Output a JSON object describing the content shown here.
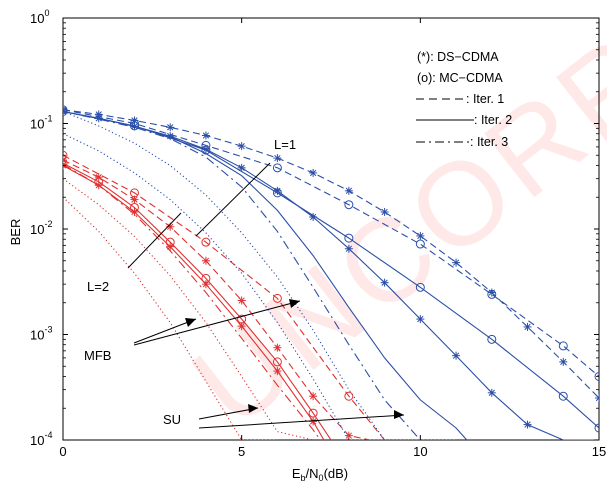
{
  "chart_data": {
    "type": "line",
    "xlabel": "E_b/N_0(dB)",
    "ylabel": "BER",
    "xlim": [
      0,
      15
    ],
    "ylim_log10": [
      -4,
      0
    ],
    "y_scale": "log",
    "x_ticks": [
      {
        "value": 0,
        "label": "0"
      },
      {
        "value": 5,
        "label": "5"
      },
      {
        "value": 10,
        "label": "10"
      },
      {
        "value": 15,
        "label": "15"
      }
    ],
    "y_ticks": [
      {
        "exp": 0,
        "base": "10",
        "sup": "0"
      },
      {
        "exp": -1,
        "base": "10",
        "sup": "-1"
      },
      {
        "exp": -2,
        "base": "10",
        "sup": "-2"
      },
      {
        "exp": -3,
        "base": "10",
        "sup": "-3"
      },
      {
        "exp": -4,
        "base": "10",
        "sup": "-4"
      }
    ],
    "grid": false,
    "watermark": "UNCORR",
    "legend": {
      "placement": "top-right",
      "entries": [
        "(*): DS−CDMA",
        "(o): MC−CDMA",
        ": Iter. 1",
        ": Iter. 2",
        ": Iter. 3"
      ]
    },
    "annotations": {
      "L1": "L=1",
      "L2": "L=2",
      "MFB": "MFB",
      "SU": "SU"
    },
    "colors": {
      "L1": "#2b4fa8",
      "L2": "#e03030"
    },
    "series": [
      {
        "group": "L1",
        "dash": "dashed",
        "marker": "o",
        "x": [
          0,
          2,
          4,
          6,
          8,
          10,
          12,
          14,
          15
        ],
        "y": [
          0.135,
          0.1,
          0.062,
          0.038,
          0.017,
          0.0072,
          0.0024,
          0.00078,
          0.0004
        ]
      },
      {
        "group": "L1",
        "dash": "dashed",
        "marker": "*",
        "x": [
          0,
          1,
          2,
          3,
          4,
          5,
          6,
          7,
          8,
          9,
          10,
          11,
          12,
          13,
          14,
          15
        ],
        "y": [
          0.135,
          0.122,
          0.107,
          0.092,
          0.077,
          0.061,
          0.047,
          0.034,
          0.023,
          0.0145,
          0.0086,
          0.0048,
          0.0025,
          0.00118,
          0.00055,
          0.00025
        ]
      },
      {
        "group": "L1",
        "dash": "solid",
        "marker": "o",
        "x": [
          0,
          2,
          4,
          6,
          8,
          10,
          12,
          14,
          15
        ],
        "y": [
          0.13,
          0.095,
          0.056,
          0.022,
          0.0082,
          0.0028,
          0.0009,
          0.00026,
          0.00013
        ]
      },
      {
        "group": "L1",
        "dash": "solid",
        "marker": "*",
        "x": [
          0,
          1,
          2,
          3,
          4,
          5,
          6,
          7,
          8,
          9,
          10,
          11,
          12,
          13,
          14,
          15
        ],
        "y": [
          0.13,
          0.112,
          0.094,
          0.076,
          0.057,
          0.038,
          0.023,
          0.013,
          0.0065,
          0.0031,
          0.0014,
          0.00063,
          0.00028,
          0.00014,
          0.0001,
          0.0001
        ]
      },
      {
        "group": "L1",
        "dash": "solid",
        "marker": "none",
        "x": [
          0,
          1,
          2,
          3,
          4,
          5,
          6,
          7,
          8,
          9,
          10,
          11,
          11.3
        ],
        "y": [
          0.13,
          0.112,
          0.094,
          0.075,
          0.052,
          0.032,
          0.015,
          0.0056,
          0.0018,
          0.0006,
          0.00024,
          0.00013,
          0.0001
        ]
      },
      {
        "group": "L1",
        "dash": "dashdot",
        "marker": "none",
        "x": [
          0,
          1,
          2,
          3,
          4,
          5,
          6,
          7,
          8,
          9,
          10
        ],
        "y": [
          0.13,
          0.11,
          0.092,
          0.072,
          0.048,
          0.025,
          0.0095,
          0.0028,
          0.0008,
          0.00024,
          0.0001
        ]
      },
      {
        "group": "L2",
        "dash": "dashed",
        "marker": "o",
        "x": [
          0,
          2,
          4,
          6,
          8,
          9
        ],
        "y": [
          0.05,
          0.022,
          0.0075,
          0.0022,
          0.00026,
          0.0001
        ]
      },
      {
        "group": "L2",
        "dash": "dashed",
        "marker": "*",
        "x": [
          0,
          1,
          2,
          3,
          4,
          5,
          6,
          7,
          8,
          8.6
        ],
        "y": [
          0.045,
          0.031,
          0.019,
          0.0105,
          0.005,
          0.0021,
          0.00075,
          0.00026,
          0.00011,
          0.0001
        ]
      },
      {
        "group": "L2",
        "dash": "solid",
        "marker": "o",
        "x": [
          0,
          1,
          2,
          3,
          4,
          5,
          6,
          7,
          7.5
        ],
        "y": [
          0.042,
          0.028,
          0.016,
          0.0075,
          0.0034,
          0.0014,
          0.00055,
          0.00018,
          0.0001
        ]
      },
      {
        "group": "L2",
        "dash": "solid",
        "marker": "*",
        "x": [
          0,
          1,
          2,
          3,
          4,
          5,
          6,
          7,
          7.3
        ],
        "y": [
          0.04,
          0.026,
          0.0145,
          0.0068,
          0.003,
          0.0012,
          0.00045,
          0.00015,
          0.0001
        ]
      },
      {
        "group": "L2",
        "dash": "dashdot",
        "marker": "none",
        "x": [
          0,
          1,
          2,
          3,
          4,
          5,
          6,
          7,
          7.2
        ],
        "y": [
          0.041,
          0.026,
          0.0138,
          0.0062,
          0.0025,
          0.00092,
          0.00033,
          0.000125,
          0.0001
        ]
      },
      {
        "group": "L1",
        "dash": "dotted",
        "marker": "none",
        "x": [
          0,
          1,
          2,
          3,
          4,
          5,
          6,
          7,
          8,
          9,
          10,
          11
        ],
        "y": [
          0.13,
          0.095,
          0.065,
          0.04,
          0.021,
          0.0092,
          0.0035,
          0.0011,
          0.0003,
          0.0001,
          0.0001,
          0.0001
        ]
      },
      {
        "group": "L2",
        "dash": "dotted",
        "marker": "none",
        "x": [
          0,
          1,
          2,
          3,
          4,
          5,
          6,
          7
        ],
        "y": [
          0.03,
          0.017,
          0.0085,
          0.0036,
          0.0013,
          0.0004,
          0.00012,
          0.0001
        ]
      },
      {
        "group": "L1",
        "dash": "dotted",
        "marker": "none",
        "x": [
          0,
          1,
          2,
          3,
          4,
          5,
          6,
          7,
          8,
          9
        ],
        "y": [
          0.08,
          0.055,
          0.034,
          0.019,
          0.0092,
          0.0038,
          0.0013,
          0.00038,
          0.0001,
          0.0001
        ]
      },
      {
        "group": "L2",
        "dash": "dotted",
        "marker": "none",
        "x": [
          0,
          1,
          2,
          3,
          4,
          5,
          6
        ],
        "y": [
          0.02,
          0.0095,
          0.0038,
          0.0013,
          0.00036,
          0.0001,
          0.0001
        ]
      }
    ]
  }
}
